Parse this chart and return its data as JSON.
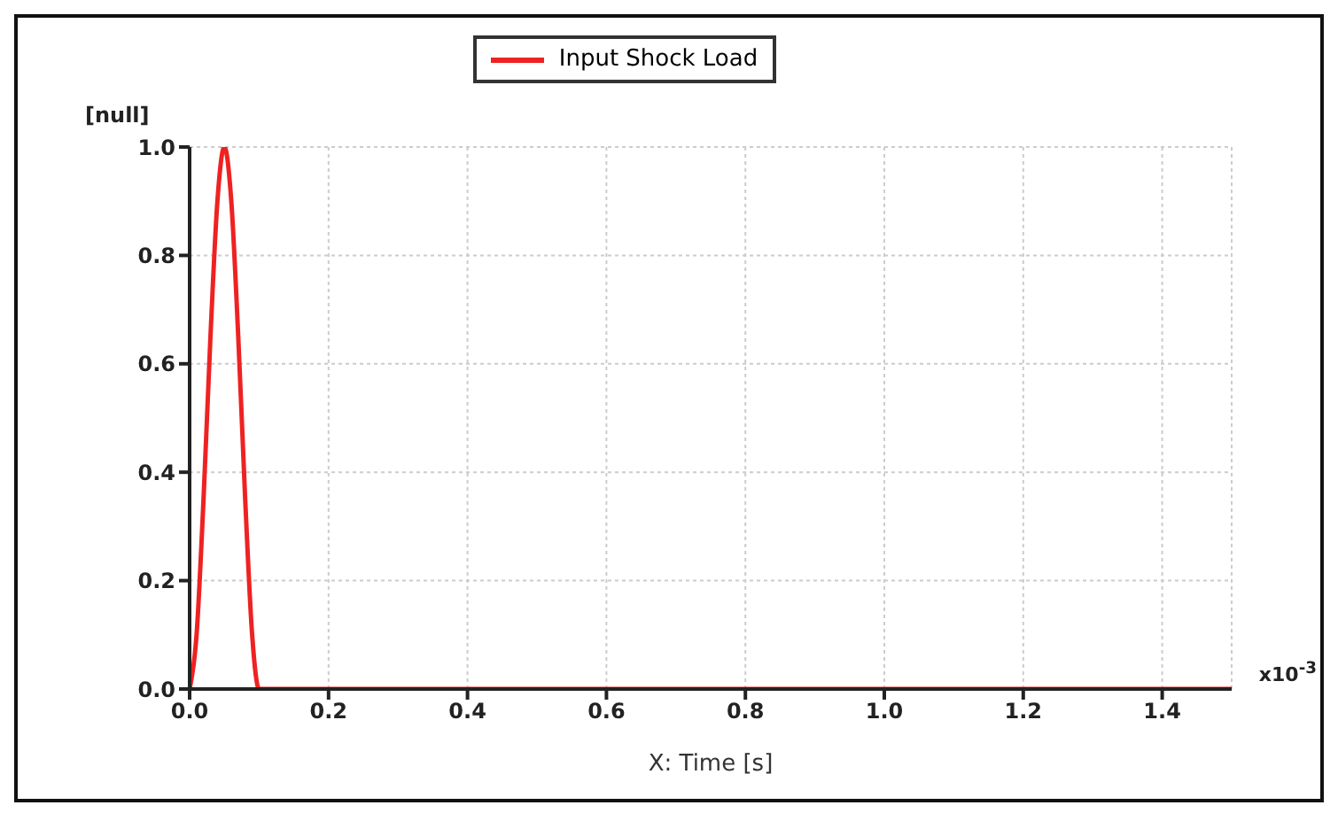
{
  "chart_data": {
    "type": "line",
    "xlabel": "X: Time [s]",
    "ylabel": "[null]",
    "annotations": [
      "x10$^{-3}$"
    ],
    "x": [
      0,
      0.01,
      0.02,
      0.03,
      0.04,
      0.05,
      0.06,
      0.07,
      0.08,
      0.09,
      0.1,
      1.5
    ],
    "series": [
      {
        "name": "Input Shock Load",
        "color": "#ee2222",
        "values": [
          0,
          0.1,
          0.35,
          0.65,
          0.9,
          1.0,
          0.9,
          0.65,
          0.35,
          0.1,
          0,
          0
        ]
      }
    ],
    "xlim": [
      0,
      1.5
    ],
    "xticks": [
      {
        "value": 0,
        "label": "0.0"
      },
      0.2,
      0.4,
      0.6,
      0.8,
      {
        "value": 1,
        "label": "1.0"
      },
      1.2,
      1.4
    ],
    "ylim": [
      0,
      1.0
    ],
    "yticks": [
      {
        "value": 0,
        "label": "0.0"
      },
      0.2,
      0.4,
      0.6,
      0.8,
      {
        "value": 1,
        "label": "1.0"
      }
    ],
    "grid": true,
    "legend": "top",
    "marker": "none",
    "line_style": "solid"
  }
}
